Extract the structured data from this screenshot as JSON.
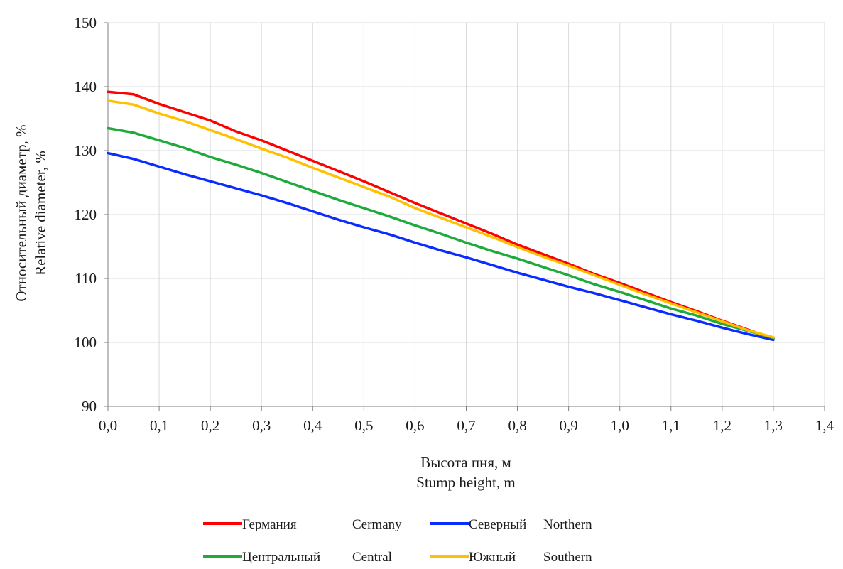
{
  "chart_data": {
    "type": "line",
    "title": "",
    "ylabel_lines": [
      "Относительный диаметр, %",
      "Relative diameter, %"
    ],
    "xlabel_lines": [
      "Высота пня, м",
      "Stump height, m"
    ],
    "xlim": [
      0,
      1.4
    ],
    "ylim": [
      90,
      150
    ],
    "x_ticks": [
      0,
      0.1,
      0.2,
      0.3,
      0.4,
      0.5,
      0.6,
      0.7,
      0.8,
      0.9,
      1.0,
      1.1,
      1.2,
      1.3,
      1.4
    ],
    "x_tick_labels": [
      "0,0",
      "0,1",
      "0,2",
      "0,3",
      "0,4",
      "0,5",
      "0,6",
      "0,7",
      "0,8",
      "0,9",
      "1,0",
      "1,1",
      "1,2",
      "1,3",
      "1,4"
    ],
    "y_ticks": [
      90,
      100,
      110,
      120,
      130,
      140,
      150
    ],
    "y_tick_labels": [
      "90",
      "100",
      "110",
      "120",
      "130",
      "140",
      "150"
    ],
    "grid": true,
    "legend_position": "bottom",
    "series": [
      {
        "name_ru": "Германия",
        "name_en": "Cermany",
        "color": "#ff0000",
        "x": [
          0,
          0.05,
          0.1,
          0.15,
          0.2,
          0.25,
          0.3,
          0.35,
          0.4,
          0.45,
          0.5,
          0.55,
          0.6,
          0.65,
          0.7,
          0.75,
          0.8,
          0.85,
          0.9,
          0.95,
          1.0,
          1.05,
          1.1,
          1.15,
          1.2,
          1.25,
          1.3
        ],
        "y": [
          139.2,
          138.8,
          137.3,
          136.0,
          134.7,
          133.0,
          131.6,
          130.0,
          128.4,
          126.8,
          125.2,
          123.5,
          121.8,
          120.2,
          118.6,
          117.0,
          115.3,
          113.8,
          112.3,
          110.7,
          109.3,
          107.8,
          106.3,
          104.9,
          103.4,
          102.0,
          100.6
        ]
      },
      {
        "name_ru": "Северный",
        "name_en": "Northern",
        "color": "#0a2cff",
        "x": [
          0,
          0.05,
          0.1,
          0.15,
          0.2,
          0.25,
          0.3,
          0.35,
          0.4,
          0.45,
          0.5,
          0.55,
          0.6,
          0.65,
          0.7,
          0.75,
          0.8,
          0.85,
          0.9,
          0.95,
          1.0,
          1.05,
          1.1,
          1.15,
          1.2,
          1.25,
          1.3
        ],
        "y": [
          129.6,
          128.7,
          127.5,
          126.3,
          125.2,
          124.1,
          123.0,
          121.8,
          120.5,
          119.2,
          118.0,
          116.9,
          115.6,
          114.4,
          113.3,
          112.1,
          110.9,
          109.8,
          108.7,
          107.7,
          106.6,
          105.5,
          104.4,
          103.4,
          102.3,
          101.3,
          100.4
        ]
      },
      {
        "name_ru": "Центральный",
        "name_en": "Central",
        "color": "#1faa3c",
        "x": [
          0,
          0.05,
          0.1,
          0.15,
          0.2,
          0.25,
          0.3,
          0.35,
          0.4,
          0.45,
          0.5,
          0.55,
          0.6,
          0.65,
          0.7,
          0.75,
          0.8,
          0.85,
          0.9,
          0.95,
          1.0,
          1.05,
          1.1,
          1.15,
          1.2,
          1.25,
          1.3
        ],
        "y": [
          133.5,
          132.8,
          131.6,
          130.4,
          129.0,
          127.8,
          126.5,
          125.1,
          123.7,
          122.3,
          121.0,
          119.7,
          118.3,
          117.0,
          115.6,
          114.3,
          113.1,
          111.8,
          110.5,
          109.1,
          107.9,
          106.6,
          105.3,
          104.2,
          102.9,
          101.8,
          100.7
        ]
      },
      {
        "name_ru": "Южный",
        "name_en": "Southern",
        "color": "#ffc000",
        "x": [
          0,
          0.05,
          0.1,
          0.15,
          0.2,
          0.25,
          0.3,
          0.35,
          0.4,
          0.45,
          0.5,
          0.55,
          0.6,
          0.65,
          0.7,
          0.75,
          0.8,
          0.85,
          0.9,
          0.95,
          1.0,
          1.05,
          1.1,
          1.15,
          1.2,
          1.25,
          1.3
        ],
        "y": [
          137.8,
          137.2,
          135.8,
          134.6,
          133.2,
          131.8,
          130.3,
          128.9,
          127.3,
          125.8,
          124.3,
          122.8,
          121.0,
          119.5,
          118.0,
          116.5,
          114.9,
          113.4,
          112.0,
          110.5,
          109.0,
          107.5,
          106.1,
          104.7,
          103.3,
          101.9,
          100.8
        ]
      }
    ],
    "legend_order": [
      0,
      1,
      2,
      3
    ]
  }
}
